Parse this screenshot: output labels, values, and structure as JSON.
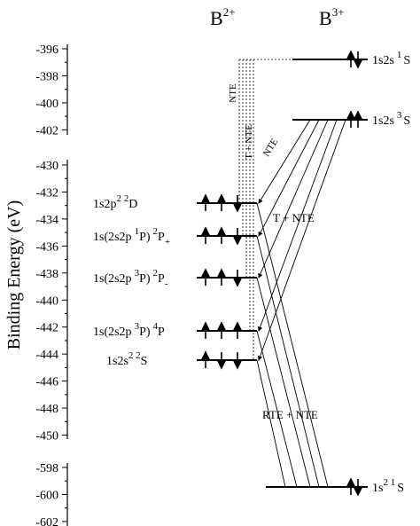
{
  "header": {
    "left": [
      "B",
      "2+"
    ],
    "right": [
      "B",
      "3+"
    ]
  },
  "axis": {
    "label": "Binding Energy (eV)",
    "ticks_top": [
      "-396",
      "-398",
      "-400",
      "-402"
    ],
    "ticks_middle": [
      "-430",
      "-432",
      "-434",
      "-436",
      "-438",
      "-440",
      "-442",
      "-444",
      "-446",
      "-448",
      "-450"
    ],
    "ticks_bottom": [
      "-598",
      "-600",
      "-602"
    ]
  },
  "levels_b2": [
    {
      "label": [
        "1s2p",
        "2 2",
        "D"
      ]
    },
    {
      "label": [
        "1s(2s2p",
        "1",
        "P)",
        "2",
        "P",
        "+"
      ]
    },
    {
      "label": [
        "1s(2s2p",
        "3",
        "P)",
        "2",
        "P",
        "-"
      ]
    },
    {
      "label": [
        "1s(2s2p",
        "3",
        "P)",
        "4",
        "P"
      ]
    },
    {
      "label": [
        "1s2s",
        "2 2",
        "S"
      ]
    }
  ],
  "levels_b3": [
    {
      "label": [
        "1s2s",
        "1",
        "S"
      ]
    },
    {
      "label": [
        "1s2s",
        "3",
        "S"
      ]
    },
    {
      "label": [
        "1s",
        "2 1",
        "S"
      ]
    }
  ],
  "annotations": [
    "NTE",
    "T + NTE",
    "NTE",
    "T + NTE",
    "RTE + NTE"
  ]
}
